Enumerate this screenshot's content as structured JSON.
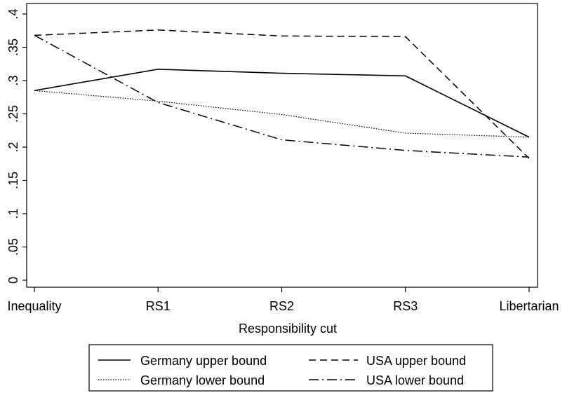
{
  "chart_data": {
    "type": "line",
    "title": "",
    "xlabel": "Responsibility cut",
    "ylabel": "",
    "categories": [
      "Inequality",
      "RS1",
      "RS2",
      "RS3",
      "Libertarian"
    ],
    "ylim": [
      0,
      0.4
    ],
    "yticks": [
      {
        "value": 0,
        "label": "0"
      },
      {
        "value": 0.05,
        "label": ".05"
      },
      {
        "value": 0.1,
        "label": ".1"
      },
      {
        "value": 0.15,
        "label": ".15"
      },
      {
        "value": 0.2,
        "label": ".2"
      },
      {
        "value": 0.25,
        "label": ".25"
      },
      {
        "value": 0.3,
        "label": ".3"
      },
      {
        "value": 0.35,
        "label": ".35"
      },
      {
        "value": 0.4,
        "label": ".4"
      }
    ],
    "grid": false,
    "legend_position": "bottom",
    "series": [
      {
        "name": "Germany upper bound",
        "style": "solid",
        "values": [
          0.285,
          0.317,
          0.311,
          0.307,
          0.215
        ]
      },
      {
        "name": "USA upper bound",
        "style": "dashed",
        "values": [
          0.368,
          0.376,
          0.367,
          0.366,
          0.183
        ]
      },
      {
        "name": "Germany lower bound",
        "style": "dotted",
        "values": [
          0.285,
          0.269,
          0.249,
          0.221,
          0.215
        ]
      },
      {
        "name": "USA lower bound",
        "style": "dashdot",
        "values": [
          0.368,
          0.267,
          0.211,
          0.195,
          0.185
        ]
      }
    ]
  }
}
